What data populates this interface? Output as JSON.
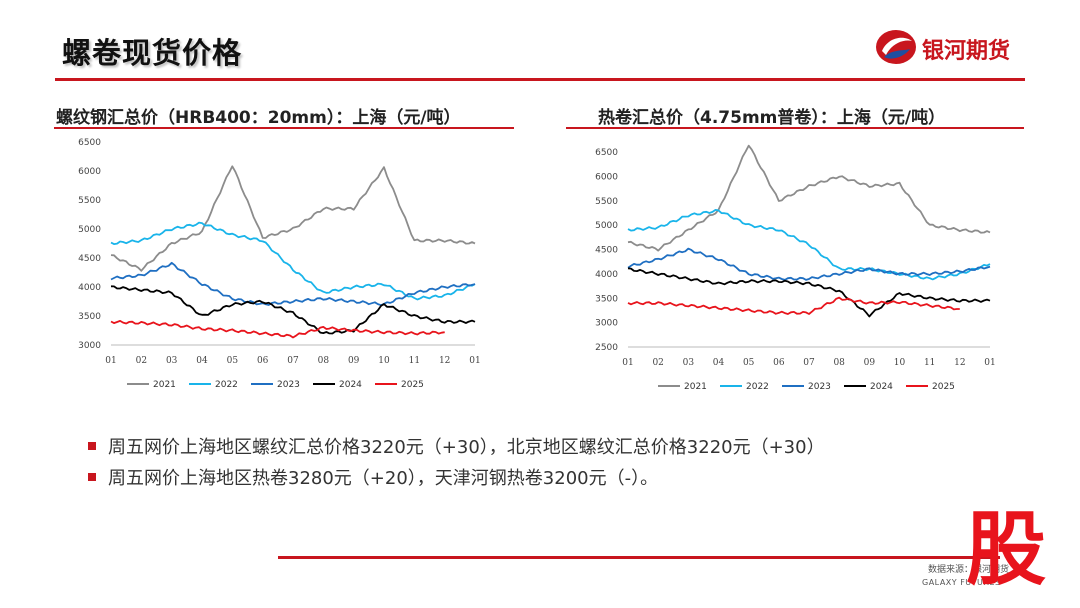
{
  "page": {
    "title": "螺卷现货价格",
    "logo_text": "银河期货",
    "source_text": "数据来源：银河期货",
    "footer_brand": "GALAXY FUTURES",
    "watermark": "股"
  },
  "colors": {
    "accent": "#c8161e",
    "series_2021": "#8c8c8c",
    "series_2022": "#19b4ea",
    "series_2023": "#1f6fc2",
    "series_2024": "#000000",
    "series_2025": "#e8141c"
  },
  "bullets": [
    "周五网价上海地区螺纹汇总价格3220元（+30），北京地区螺纹汇总价格3220元（+30）",
    "周五网价上海地区热卷3280元（+20），天津河钢热卷3200元（-）。"
  ],
  "chart_data": [
    {
      "type": "line",
      "title": "螺纹钢汇总价（HRB400：20mm）：上海（元/吨）",
      "categories": [
        "01",
        "02",
        "03",
        "04",
        "05",
        "06",
        "07",
        "08",
        "09",
        "10",
        "11",
        "12",
        "01"
      ],
      "ylim": [
        3000,
        6500
      ],
      "yticks": [
        3000,
        3500,
        4000,
        4500,
        5000,
        5500,
        6000,
        6500
      ],
      "legend": [
        "2021",
        "2022",
        "2023",
        "2024",
        "2025"
      ],
      "series": [
        {
          "name": "2021",
          "values": [
            4550,
            4300,
            4750,
            4950,
            6100,
            4850,
            5000,
            5350,
            5350,
            6050,
            4800,
            4800,
            4750
          ]
        },
        {
          "name": "2022",
          "values": [
            4750,
            4800,
            5000,
            5100,
            4900,
            4800,
            4300,
            3900,
            4000,
            4050,
            3800,
            3850,
            4050
          ]
        },
        {
          "name": "2023",
          "values": [
            4150,
            4200,
            4400,
            4050,
            3800,
            3700,
            3750,
            3800,
            3750,
            3700,
            3900,
            4000,
            4050
          ]
        },
        {
          "name": "2024",
          "values": [
            4000,
            3950,
            3900,
            3500,
            3700,
            3750,
            3550,
            3200,
            3250,
            3700,
            3500,
            3400,
            3400
          ]
        },
        {
          "name": "2025",
          "values": [
            3400,
            3380,
            3350,
            3280,
            3250,
            3200,
            3150,
            3300,
            3250,
            3220,
            3200,
            3220,
            null
          ]
        }
      ]
    },
    {
      "type": "line",
      "title": "热卷汇总价（4.75mm普卷）：上海（元/吨）",
      "categories": [
        "01",
        "02",
        "03",
        "04",
        "05",
        "06",
        "07",
        "08",
        "09",
        "10",
        "11",
        "12",
        "01"
      ],
      "ylim": [
        2500,
        6500
      ],
      "yticks": [
        2500,
        3000,
        3500,
        4000,
        4500,
        5000,
        5500,
        6000,
        6500
      ],
      "legend": [
        "2021",
        "2022",
        "2023",
        "2024",
        "2025"
      ],
      "series": [
        {
          "name": "2021",
          "values": [
            4650,
            4500,
            4900,
            5300,
            6650,
            5500,
            5800,
            6000,
            5800,
            5850,
            5000,
            4900,
            4850
          ]
        },
        {
          "name": "2022",
          "values": [
            4900,
            4950,
            5200,
            5300,
            5000,
            4900,
            4600,
            4100,
            4100,
            4000,
            3900,
            4000,
            4200
          ]
        },
        {
          "name": "2023",
          "values": [
            4150,
            4300,
            4500,
            4300,
            4000,
            3900,
            3900,
            4000,
            4100,
            4000,
            4000,
            4050,
            4150
          ]
        },
        {
          "name": "2024",
          "values": [
            4100,
            4000,
            3900,
            3800,
            3850,
            3850,
            3800,
            3650,
            3150,
            3600,
            3500,
            3450,
            3450
          ]
        },
        {
          "name": "2025",
          "values": [
            3400,
            3400,
            3350,
            3300,
            3250,
            3200,
            3200,
            3500,
            3400,
            3420,
            3350,
            3280,
            null
          ]
        }
      ]
    }
  ]
}
